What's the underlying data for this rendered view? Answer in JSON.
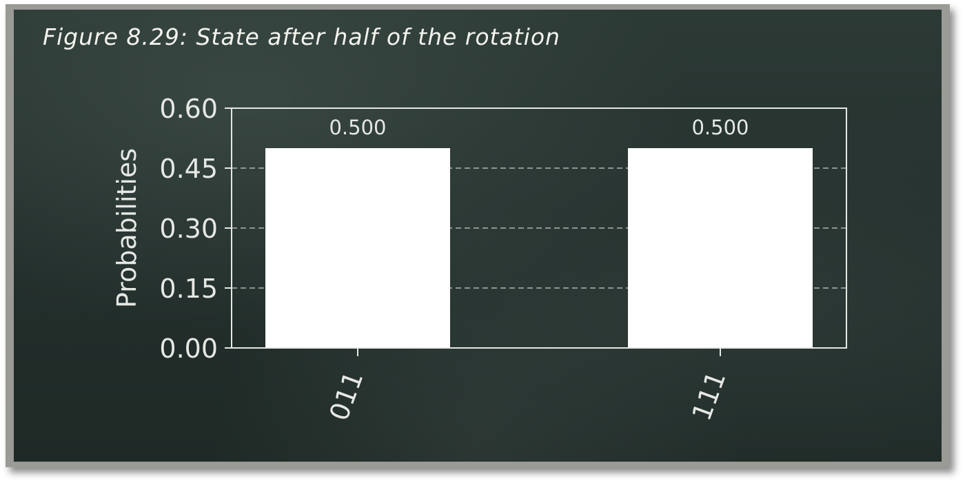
{
  "figure": {
    "caption": "Figure 8.29: State after half of the rotation"
  },
  "chart_data": {
    "type": "bar",
    "categories": [
      "011",
      "111"
    ],
    "values": [
      0.5,
      0.5
    ],
    "value_labels": [
      "0.500",
      "0.500"
    ],
    "ylabel": "Probabilities",
    "xlabel": "",
    "ylim": [
      0,
      0.6
    ],
    "yticks": [
      0.0,
      0.15,
      0.3,
      0.45,
      0.6
    ],
    "ytick_labels": [
      "0.00",
      "0.15",
      "0.30",
      "0.45",
      "0.60"
    ],
    "grid": "horizontal dashed",
    "legend": "none",
    "bar_color": "#ffffff",
    "axes_color": "#e6e8e4",
    "x_tick_rotation": 70
  }
}
